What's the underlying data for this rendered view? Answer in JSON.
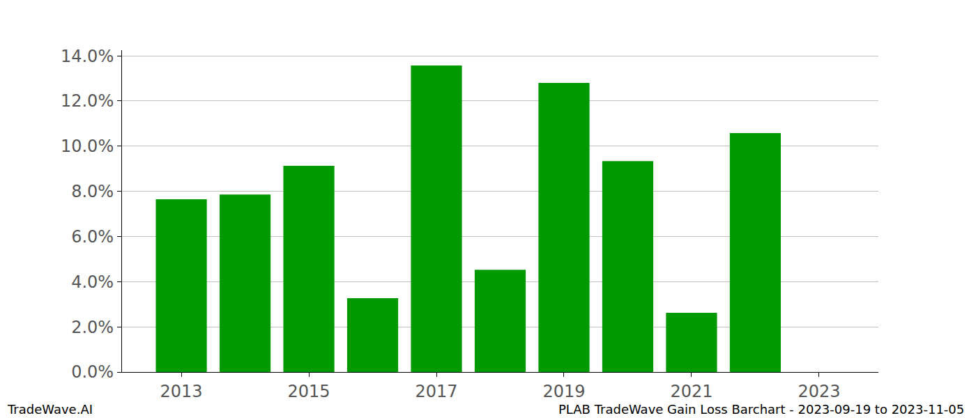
{
  "chart_data": {
    "type": "bar",
    "title": "PLAB TradeWave Gain Loss Barchart - 2023-09-19 to 2023-11-05",
    "annotations": [
      "TradeWave.AI"
    ],
    "x": [
      2013,
      2014,
      2015,
      2016,
      2017,
      2018,
      2019,
      2020,
      2021,
      2022
    ],
    "values": [
      7.65,
      7.86,
      9.13,
      3.27,
      13.57,
      4.53,
      12.8,
      9.34,
      2.62,
      10.58
    ],
    "color": "#009900",
    "xlim": [
      2012.07,
      2023.93
    ],
    "xticks": [
      2013,
      2015,
      2017,
      2019,
      2021,
      2023
    ],
    "ylim": [
      0,
      14.25
    ],
    "yticks": [
      {
        "value": 0,
        "label": "0.0%"
      },
      {
        "value": 2,
        "label": "2.0%"
      },
      {
        "value": 4,
        "label": "4.0%"
      },
      {
        "value": 6,
        "label": "6.0%"
      },
      {
        "value": 8,
        "label": "8.0%"
      },
      {
        "value": 10,
        "label": "10.0%"
      },
      {
        "value": 12,
        "label": "12.0%"
      },
      {
        "value": 14,
        "label": "14.0%"
      }
    ],
    "grid": true
  }
}
